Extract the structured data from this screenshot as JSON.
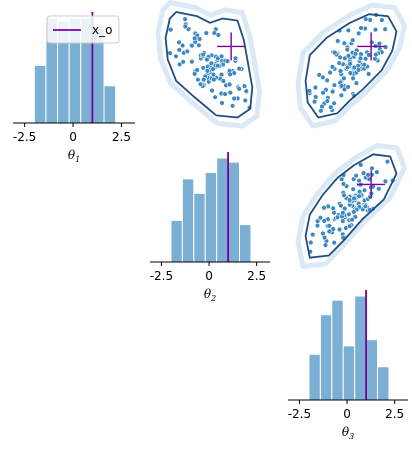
{
  "chart_data": {
    "type": "pairplot",
    "colors": {
      "bar_fill": "#7bafd4",
      "bar_edge": "#ffffff",
      "point": "#3c88c2",
      "contour": "#1f4e85",
      "halo": "#dbe8f5",
      "observation": "#7d009d"
    },
    "legend": {
      "label": "x_o",
      "placement": "upper-left"
    },
    "observation": {
      "theta_1": 1.0,
      "theta_2": 1.0,
      "theta_3": 1.0
    },
    "diagonal": [
      {
        "xlabel": "θ",
        "xlabel_sub": "1",
        "xlim": [
          -3.1,
          3.2
        ],
        "ticks": [
          -2.5,
          0,
          2.5
        ],
        "tick_labels": [
          "-2.5",
          "0",
          "2.5"
        ],
        "bin_edges": [
          -2.0,
          -1.4,
          -0.8,
          -0.2,
          0.4,
          1.0,
          1.6,
          2.2
        ],
        "counts": [
          34,
          62,
          60,
          62,
          62,
          58,
          22
        ]
      },
      {
        "xlabel": "θ",
        "xlabel_sub": "2",
        "xlim": [
          -3.1,
          3.2
        ],
        "ticks": [
          -2.5,
          0,
          2.5
        ],
        "tick_labels": [
          "-2.5",
          "0",
          "2.5"
        ],
        "bin_edges": [
          -2.0,
          -1.4,
          -0.8,
          -0.2,
          0.4,
          1.0,
          1.6,
          2.2
        ],
        "counts": [
          20,
          40,
          33,
          43,
          50,
          48,
          18
        ]
      },
      {
        "xlabel": "θ",
        "xlabel_sub": "3",
        "xlim": [
          -3.1,
          3.2
        ],
        "ticks": [
          -2.5,
          0,
          2.5
        ],
        "tick_labels": [
          "-2.5",
          "0",
          "2.5"
        ],
        "bin_edges": [
          -2.0,
          -1.4,
          -0.8,
          -0.2,
          0.4,
          1.0,
          1.6,
          2.2
        ],
        "counts": [
          22,
          41,
          48,
          26,
          50,
          29,
          16
        ]
      }
    ],
    "pairs": [
      {
        "x_param": "theta_1",
        "y_param": "theta_2",
        "correlation": -0.7,
        "contour": [
          [
            -1.9,
            2.3
          ],
          [
            -1.6,
            2.6
          ],
          [
            -0.6,
            2.4
          ],
          [
            0.0,
            2.1
          ],
          [
            0.6,
            2.3
          ],
          [
            1.3,
            2.2
          ],
          [
            1.6,
            1.3
          ],
          [
            1.8,
            0.2
          ],
          [
            2.0,
            -0.9
          ],
          [
            1.9,
            -1.9
          ],
          [
            1.3,
            -2.3
          ],
          [
            0.3,
            -2.2
          ],
          [
            -0.8,
            -1.3
          ],
          [
            -1.6,
            -0.6
          ],
          [
            -2.0,
            0.4
          ],
          [
            -2.1,
            1.4
          ]
        ]
      },
      {
        "x_param": "theta_1",
        "y_param": "theta_3",
        "correlation": 0.6,
        "contour": [
          [
            -1.5,
            -2.3
          ],
          [
            -2.0,
            -1.6
          ],
          [
            -2.1,
            -0.6
          ],
          [
            -1.9,
            0.6
          ],
          [
            -1.1,
            1.4
          ],
          [
            0.0,
            2.1
          ],
          [
            0.9,
            2.5
          ],
          [
            1.8,
            2.4
          ],
          [
            2.2,
            1.7
          ],
          [
            2.0,
            0.8
          ],
          [
            1.5,
            -0.1
          ],
          [
            0.6,
            -1.0
          ],
          [
            0.0,
            -1.5
          ],
          [
            -0.6,
            -2.1
          ]
        ]
      },
      {
        "x_param": "theta_2",
        "y_param": "theta_3",
        "correlation": 0.8,
        "contour": [
          [
            -1.9,
            -2.4
          ],
          [
            -2.1,
            -1.4
          ],
          [
            -1.9,
            -0.4
          ],
          [
            -1.3,
            0.5
          ],
          [
            -0.6,
            1.3
          ],
          [
            0.2,
            1.9
          ],
          [
            1.1,
            2.4
          ],
          [
            1.9,
            2.3
          ],
          [
            2.2,
            1.5
          ],
          [
            1.6,
            0.3
          ],
          [
            0.6,
            -0.6
          ],
          [
            -0.3,
            -1.6
          ],
          [
            -1.0,
            -2.3
          ]
        ]
      }
    ]
  }
}
